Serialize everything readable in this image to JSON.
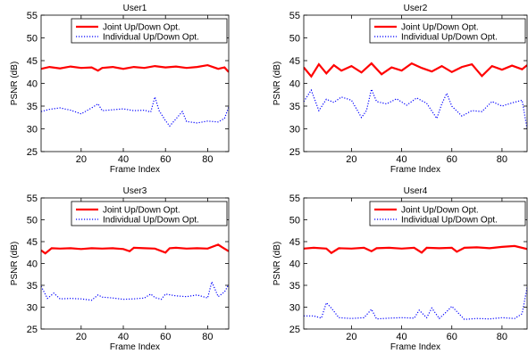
{
  "chart_data": [
    {
      "type": "line",
      "title": "User1",
      "xlabel": "Frame Index",
      "ylabel": "PSNR (dB)",
      "xlim": [
        1,
        90
      ],
      "ylim": [
        25,
        55
      ],
      "xticks": [
        20,
        40,
        60,
        80
      ],
      "yticks": [
        25,
        30,
        35,
        40,
        45,
        50,
        55
      ],
      "legend": "top-right",
      "grid": false,
      "series": [
        {
          "name": "Joint Up/Down Opt.",
          "color": "#ff0000",
          "style": "solid",
          "x": [
            1,
            5,
            10,
            15,
            20,
            25,
            28,
            30,
            35,
            40,
            45,
            50,
            55,
            60,
            65,
            70,
            75,
            80,
            83,
            85,
            88,
            90
          ],
          "values": [
            43.2,
            43.6,
            43.3,
            43.7,
            43.4,
            43.5,
            42.8,
            43.4,
            43.6,
            43.2,
            43.6,
            43.4,
            43.8,
            43.5,
            43.7,
            43.4,
            43.6,
            44.0,
            43.5,
            43.2,
            43.5,
            42.5
          ]
        },
        {
          "name": "Individual Up/Down Opt.",
          "color": "#0000ff",
          "style": "dotted",
          "x": [
            1,
            5,
            10,
            15,
            20,
            25,
            28,
            30,
            35,
            40,
            45,
            50,
            53,
            55,
            57,
            60,
            62,
            65,
            68,
            70,
            75,
            80,
            85,
            88,
            90
          ],
          "values": [
            33.8,
            34.3,
            34.6,
            34.1,
            33.3,
            34.6,
            35.5,
            34.0,
            34.2,
            34.4,
            34.0,
            34.1,
            33.7,
            37.0,
            34.0,
            31.8,
            30.6,
            32.2,
            33.8,
            31.6,
            31.3,
            31.7,
            31.5,
            32.3,
            34.8
          ]
        }
      ]
    },
    {
      "type": "line",
      "title": "User2",
      "xlabel": "Frame Index",
      "ylabel": "PSNR (dB)",
      "xlim": [
        1,
        90
      ],
      "ylim": [
        25,
        55
      ],
      "xticks": [
        20,
        40,
        60,
        80
      ],
      "yticks": [
        25,
        30,
        35,
        40,
        45,
        50,
        55
      ],
      "legend": "top-right",
      "grid": false,
      "series": [
        {
          "name": "Joint Up/Down Opt.",
          "color": "#ff0000",
          "style": "solid",
          "x": [
            1,
            4,
            7,
            10,
            13,
            16,
            20,
            24,
            28,
            32,
            36,
            40,
            44,
            48,
            52,
            56,
            60,
            64,
            68,
            72,
            76,
            80,
            84,
            88,
            90
          ],
          "values": [
            43.5,
            41.5,
            44.2,
            42.2,
            44.0,
            42.8,
            43.8,
            42.4,
            44.4,
            42.0,
            43.5,
            42.8,
            44.4,
            43.4,
            42.6,
            43.8,
            42.5,
            43.6,
            44.2,
            41.6,
            43.8,
            43.0,
            43.9,
            43.1,
            44.0
          ]
        },
        {
          "name": "Individual Up/Down Opt.",
          "color": "#0000ff",
          "style": "dotted",
          "x": [
            1,
            4,
            7,
            10,
            13,
            16,
            20,
            24,
            26,
            28,
            30,
            34,
            38,
            42,
            46,
            50,
            54,
            56,
            58,
            60,
            64,
            68,
            72,
            76,
            80,
            84,
            88,
            90
          ],
          "values": [
            36.0,
            38.5,
            34.0,
            36.5,
            35.8,
            37.0,
            36.3,
            32.5,
            34.0,
            38.7,
            36.0,
            35.5,
            36.6,
            35.2,
            36.8,
            35.6,
            32.3,
            35.5,
            37.8,
            35.0,
            32.8,
            34.0,
            33.8,
            36.0,
            35.0,
            35.7,
            36.3,
            30.0
          ]
        }
      ]
    },
    {
      "type": "line",
      "title": "User3",
      "xlabel": "Frame Index",
      "ylabel": "PSNR (dB)",
      "xlim": [
        1,
        90
      ],
      "ylim": [
        25,
        55
      ],
      "xticks": [
        20,
        40,
        60,
        80
      ],
      "yticks": [
        25,
        30,
        35,
        40,
        45,
        50,
        55
      ],
      "legend": "top-right",
      "grid": false,
      "series": [
        {
          "name": "Joint Up/Down Opt.",
          "color": "#ff0000",
          "style": "solid",
          "x": [
            1,
            3,
            6,
            10,
            15,
            20,
            25,
            30,
            35,
            40,
            43,
            45,
            50,
            55,
            60,
            62,
            65,
            70,
            75,
            80,
            85,
            87,
            90
          ],
          "values": [
            43.0,
            42.3,
            43.5,
            43.4,
            43.5,
            43.3,
            43.5,
            43.4,
            43.5,
            43.3,
            42.8,
            43.6,
            43.5,
            43.4,
            42.5,
            43.5,
            43.6,
            43.4,
            43.5,
            43.4,
            44.3,
            43.7,
            42.8
          ]
        },
        {
          "name": "Individual Up/Down Opt.",
          "color": "#0000ff",
          "style": "dotted",
          "x": [
            1,
            4,
            7,
            10,
            15,
            20,
            25,
            28,
            30,
            35,
            40,
            45,
            50,
            53,
            55,
            58,
            60,
            65,
            70,
            75,
            80,
            82,
            85,
            88,
            90
          ],
          "values": [
            34.8,
            32.0,
            33.2,
            31.9,
            32.0,
            31.9,
            31.6,
            32.8,
            32.3,
            32.1,
            31.8,
            31.9,
            32.1,
            33.0,
            32.2,
            31.8,
            33.0,
            32.6,
            32.4,
            32.8,
            32.1,
            35.8,
            32.4,
            33.5,
            35.2
          ]
        }
      ]
    },
    {
      "type": "line",
      "title": "User4",
      "xlabel": "Frame Index",
      "ylabel": "PSNR (dB)",
      "xlim": [
        1,
        90
      ],
      "ylim": [
        25,
        55
      ],
      "xticks": [
        20,
        40,
        60,
        80
      ],
      "yticks": [
        25,
        30,
        35,
        40,
        45,
        50,
        55
      ],
      "legend": "top-right",
      "grid": false,
      "series": [
        {
          "name": "Joint Up/Down Opt.",
          "color": "#ff0000",
          "style": "solid",
          "x": [
            1,
            5,
            10,
            12,
            15,
            20,
            25,
            28,
            30,
            35,
            40,
            45,
            48,
            50,
            55,
            60,
            62,
            65,
            70,
            75,
            80,
            85,
            90
          ],
          "values": [
            43.4,
            43.6,
            43.4,
            42.4,
            43.5,
            43.4,
            43.6,
            42.8,
            43.5,
            43.6,
            43.4,
            43.6,
            42.5,
            43.6,
            43.5,
            43.6,
            42.7,
            43.6,
            43.7,
            43.5,
            43.8,
            44.0,
            43.3
          ]
        },
        {
          "name": "Individual Up/Down Opt.",
          "color": "#0000ff",
          "style": "dotted",
          "x": [
            1,
            5,
            8,
            10,
            12,
            15,
            20,
            25,
            28,
            30,
            35,
            40,
            45,
            47,
            50,
            52,
            55,
            58,
            60,
            65,
            70,
            75,
            80,
            85,
            88,
            90
          ],
          "values": [
            28.0,
            28.0,
            27.5,
            31.0,
            29.8,
            27.6,
            27.4,
            27.6,
            29.5,
            27.3,
            27.5,
            27.6,
            27.5,
            29.3,
            27.6,
            29.8,
            27.4,
            29.0,
            30.2,
            27.2,
            27.4,
            27.3,
            27.6,
            27.4,
            28.5,
            34.5
          ]
        }
      ]
    }
  ]
}
